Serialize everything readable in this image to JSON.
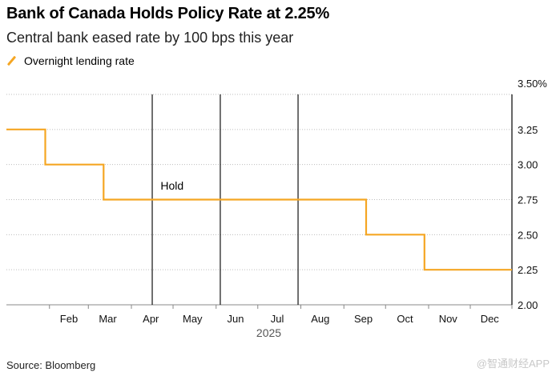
{
  "header": {
    "title": "Bank of Canada Holds Policy Rate at 2.25%",
    "subtitle": "Central bank eased rate by 100 bps this year"
  },
  "footer": {
    "source": "Source: Bloomberg",
    "watermark": "@智通财经APP"
  },
  "chart_data": {
    "type": "line",
    "title": "Bank of Canada Holds Policy Rate at 2.25%",
    "subtitle": "Central bank eased rate by 100 bps this year",
    "xlabel": "2025",
    "ylabel": "",
    "x_ticks": [
      "Feb",
      "Mar",
      "Apr",
      "May",
      "Jun",
      "Jul",
      "Aug",
      "Sep",
      "Oct",
      "Nov",
      "Dec"
    ],
    "y_ticks": [
      "3.50%",
      "3.25",
      "3.00",
      "2.75",
      "2.50",
      "2.25",
      "2.00"
    ],
    "ylim": [
      2.0,
      3.5
    ],
    "xlim": [
      "2025-01-01",
      "2025-12-31"
    ],
    "grid": true,
    "legend_position": "top-left",
    "series": [
      {
        "name": "Overnight lending rate",
        "color": "#f5a623",
        "step": true,
        "points": [
          {
            "date": "2025-01-01",
            "value": 3.25
          },
          {
            "date": "2025-01-29",
            "value": 3.25
          },
          {
            "date": "2025-01-29",
            "value": 3.0
          },
          {
            "date": "2025-03-12",
            "value": 3.0
          },
          {
            "date": "2025-03-12",
            "value": 2.75
          },
          {
            "date": "2025-09-17",
            "value": 2.75
          },
          {
            "date": "2025-09-17",
            "value": 2.5
          },
          {
            "date": "2025-10-29",
            "value": 2.5
          },
          {
            "date": "2025-10-29",
            "value": 2.25
          },
          {
            "date": "2025-12-31",
            "value": 2.25
          }
        ]
      }
    ],
    "vertical_markers": [
      "2025-04-16",
      "2025-06-04",
      "2025-07-30"
    ],
    "annotations": [
      {
        "text": "Hold",
        "date": "2025-04-22",
        "value": 2.82
      }
    ]
  }
}
